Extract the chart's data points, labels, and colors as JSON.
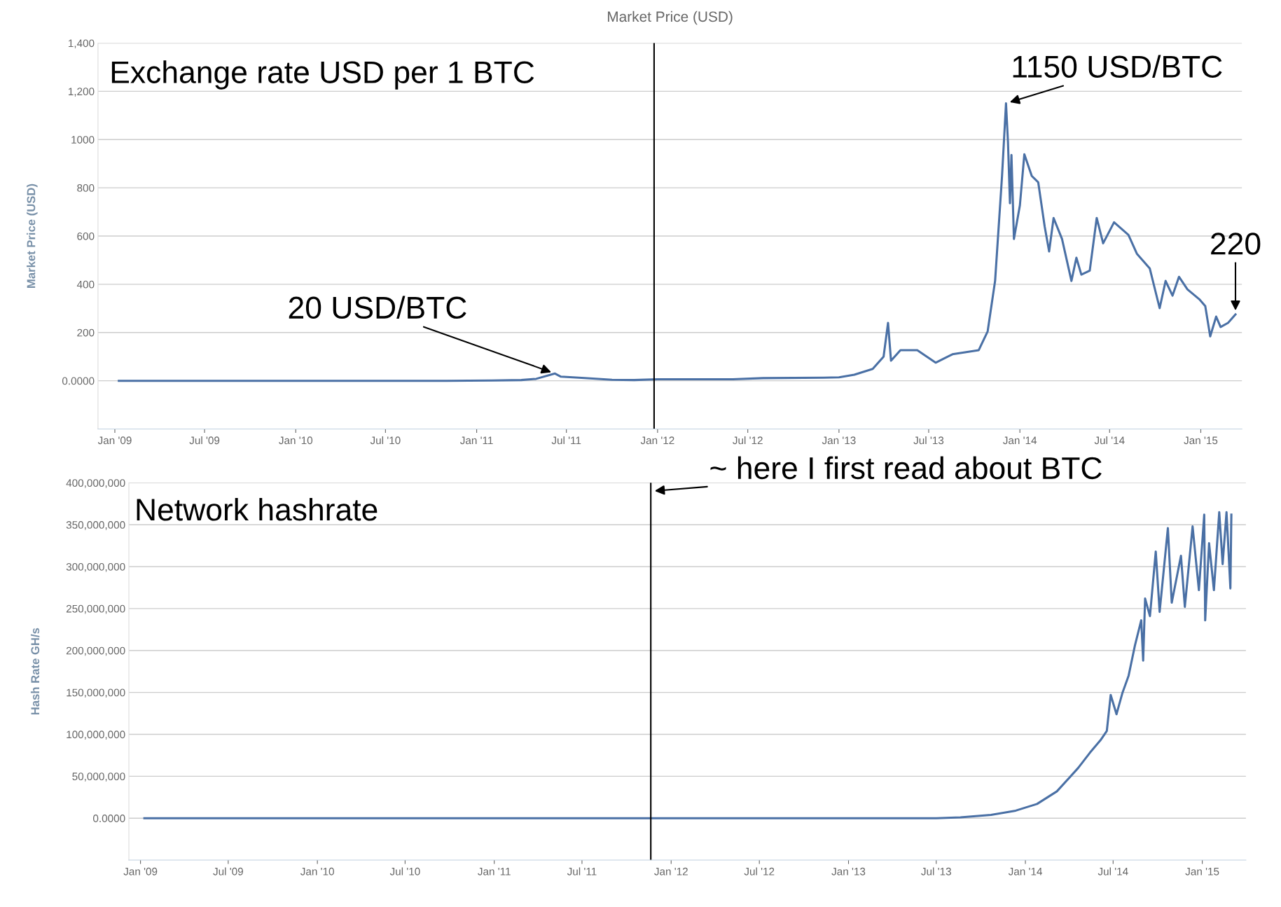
{
  "chart_data": [
    {
      "type": "line",
      "title": "Market Price (USD)",
      "ylabel": "Market Price (USD)",
      "x": [
        "2009-01-09",
        "2009-07-01",
        "2010-01-01",
        "2010-07-01",
        "2010-11-01",
        "2011-02-01",
        "2011-04-01",
        "2011-05-01",
        "2011-06-08",
        "2011-06-20",
        "2011-08-01",
        "2011-10-01",
        "2011-11-15",
        "2012-01-01",
        "2012-06-01",
        "2012-08-01",
        "2012-12-01",
        "2013-01-01",
        "2013-02-01",
        "2013-03-10",
        "2013-04-01",
        "2013-04-10",
        "2013-04-16",
        "2013-05-05",
        "2013-06-08",
        "2013-07-15",
        "2013-08-18",
        "2013-10-10",
        "2013-10-28",
        "2013-11-12",
        "2013-11-26",
        "2013-12-04",
        "2013-12-08",
        "2013-12-12",
        "2013-12-15",
        "2013-12-20",
        "2014-01-01",
        "2014-01-10",
        "2014-01-25",
        "2014-02-07",
        "2014-02-20",
        "2014-03-01",
        "2014-03-10",
        "2014-03-27",
        "2014-04-15",
        "2014-04-25",
        "2014-05-05",
        "2014-05-22",
        "2014-06-05",
        "2014-06-18",
        "2014-07-10",
        "2014-08-08",
        "2014-08-25",
        "2014-09-20",
        "2014-10-10",
        "2014-10-22",
        "2014-11-05",
        "2014-11-18",
        "2014-12-05",
        "2014-12-30",
        "2015-01-10",
        "2015-01-20",
        "2015-02-01",
        "2015-02-10",
        "2015-02-25",
        "2015-03-12"
      ],
      "series": [
        {
          "color": "#4a70a5",
          "values": [
            0,
            0,
            0,
            0,
            0,
            1,
            3,
            8,
            30,
            17,
            12,
            4,
            3,
            6,
            6,
            11,
            13,
            14,
            25,
            49,
            100,
            240,
            83,
            127,
            127,
            75,
            110,
            127,
            205,
            414,
            849,
            1150,
            988,
            736,
            936,
            588,
            727,
            939,
            849,
            823,
            640,
            536,
            675,
            588,
            414,
            510,
            440,
            457,
            675,
            570,
            657,
            605,
            527,
            466,
            301,
            414,
            353,
            431,
            379,
            336,
            310,
            184,
            266,
            223,
            240,
            275
          ]
        }
      ],
      "xlim": [
        "2008-11-28",
        "2015-03-25"
      ],
      "xticks": [
        {
          "value": "2009-01-01",
          "label": "Jan '09"
        },
        {
          "value": "2009-07-01",
          "label": "Jul '09"
        },
        {
          "value": "2010-01-01",
          "label": "Jan '10"
        },
        {
          "value": "2010-07-01",
          "label": "Jul '10"
        },
        {
          "value": "2011-01-01",
          "label": "Jan '11"
        },
        {
          "value": "2011-07-01",
          "label": "Jul '11"
        },
        {
          "value": "2012-01-01",
          "label": "Jan '12"
        },
        {
          "value": "2012-07-01",
          "label": "Jul '12"
        },
        {
          "value": "2013-01-01",
          "label": "Jan '13"
        },
        {
          "value": "2013-07-01",
          "label": "Jul '13"
        },
        {
          "value": "2014-01-01",
          "label": "Jan '14"
        },
        {
          "value": "2014-07-01",
          "label": "Jul '14"
        },
        {
          "value": "2015-01-01",
          "label": "Jan '15"
        }
      ],
      "ylim": [
        -200,
        1400
      ],
      "yticks": [
        {
          "value": 0,
          "label": "0.0000"
        },
        200,
        400,
        600,
        800,
        1000,
        {
          "value": 1200,
          "label": "1,200"
        },
        {
          "value": 1400,
          "label": "1,400"
        }
      ],
      "grid": "y",
      "line_style": "solid",
      "marker": "none",
      "ref_lines": [
        {
          "axis": "x",
          "value": "2011-12-25",
          "color": "#000000"
        }
      ],
      "annotations": [
        "Exchange rate USD per 1 BTC",
        {
          "text": "20 USD/BTC",
          "x": "2011-06-08",
          "y": 30
        },
        {
          "text": "1150 USD/BTC",
          "x": "2013-12-04",
          "y": 1150
        },
        {
          "text": "220",
          "x": "2015-03-12",
          "y": 275
        }
      ]
    },
    {
      "type": "line",
      "ylabel": "Hash Rate GH/s",
      "x": [
        "2009-01-09",
        "2010-01-01",
        "2011-01-01",
        "2012-01-01",
        "2013-01-01",
        "2013-07-01",
        "2013-08-20",
        "2013-10-22",
        "2013-12-12",
        "2014-01-25",
        "2014-03-07",
        "2014-04-20",
        "2014-05-14",
        "2014-06-05",
        "2014-06-18",
        "2014-06-26",
        "2014-07-08",
        "2014-07-20",
        "2014-08-02",
        "2014-08-15",
        "2014-08-28",
        "2014-09-01",
        "2014-09-05",
        "2014-09-15",
        "2014-09-27",
        "2014-10-05",
        "2014-10-22",
        "2014-10-30",
        "2014-11-18",
        "2014-11-26",
        "2014-12-12",
        "2014-12-25",
        "2015-01-05",
        "2015-01-07",
        "2015-01-15",
        "2015-01-25",
        "2015-02-05",
        "2015-02-12",
        "2015-02-20",
        "2015-02-28",
        "2015-03-02"
      ],
      "series": [
        {
          "color": "#4a70a5",
          "values": [
            0,
            0,
            0,
            0,
            0,
            0,
            1000000,
            4000000,
            9000000,
            17000000,
            32000000,
            60000000,
            78000000,
            93000000,
            104000000,
            147000000,
            124000000,
            149000000,
            170000000,
            206000000,
            236000000,
            188000000,
            262000000,
            241000000,
            318000000,
            246000000,
            346000000,
            257000000,
            313000000,
            252000000,
            348000000,
            272000000,
            362000000,
            236000000,
            328000000,
            272000000,
            365000000,
            303000000,
            365000000,
            274000000,
            362000000
          ]
        }
      ],
      "xlim": [
        "2008-12-08",
        "2015-04-01"
      ],
      "xticks": [
        {
          "value": "2009-01-01",
          "label": "Jan '09"
        },
        {
          "value": "2009-07-01",
          "label": "Jul '09"
        },
        {
          "value": "2010-01-01",
          "label": "Jan '10"
        },
        {
          "value": "2010-07-01",
          "label": "Jul '10"
        },
        {
          "value": "2011-01-01",
          "label": "Jan '11"
        },
        {
          "value": "2011-07-01",
          "label": "Jul '11"
        },
        {
          "value": "2012-01-01",
          "label": "Jan '12"
        },
        {
          "value": "2012-07-01",
          "label": "Jul '12"
        },
        {
          "value": "2013-01-01",
          "label": "Jan '13"
        },
        {
          "value": "2013-07-01",
          "label": "Jul '13"
        },
        {
          "value": "2014-01-01",
          "label": "Jan '14"
        },
        {
          "value": "2014-07-01",
          "label": "Jul '14"
        },
        {
          "value": "2015-01-01",
          "label": "Jan '15"
        }
      ],
      "ylim": [
        -50000000,
        400000000
      ],
      "yticks": [
        {
          "value": 0,
          "label": "0.0000"
        },
        {
          "value": 50000000,
          "label": "50,000,000"
        },
        {
          "value": 100000000,
          "label": "100,000,000"
        },
        {
          "value": 150000000,
          "label": "150,000,000"
        },
        {
          "value": 200000000,
          "label": "200,000,000"
        },
        {
          "value": 250000000,
          "label": "250,000,000"
        },
        {
          "value": 300000000,
          "label": "300,000,000"
        },
        {
          "value": 350000000,
          "label": "350,000,000"
        },
        {
          "value": 400000000,
          "label": "400,000,000"
        }
      ],
      "grid": "y",
      "line_style": "solid",
      "marker": "none",
      "ref_lines": [
        {
          "axis": "x",
          "value": "2011-11-20",
          "color": "#000000"
        }
      ],
      "annotations": [
        "Network hashrate",
        {
          "text": "~ here I first read about BTC",
          "x": "2011-11-20",
          "y": 390000000
        }
      ]
    }
  ]
}
